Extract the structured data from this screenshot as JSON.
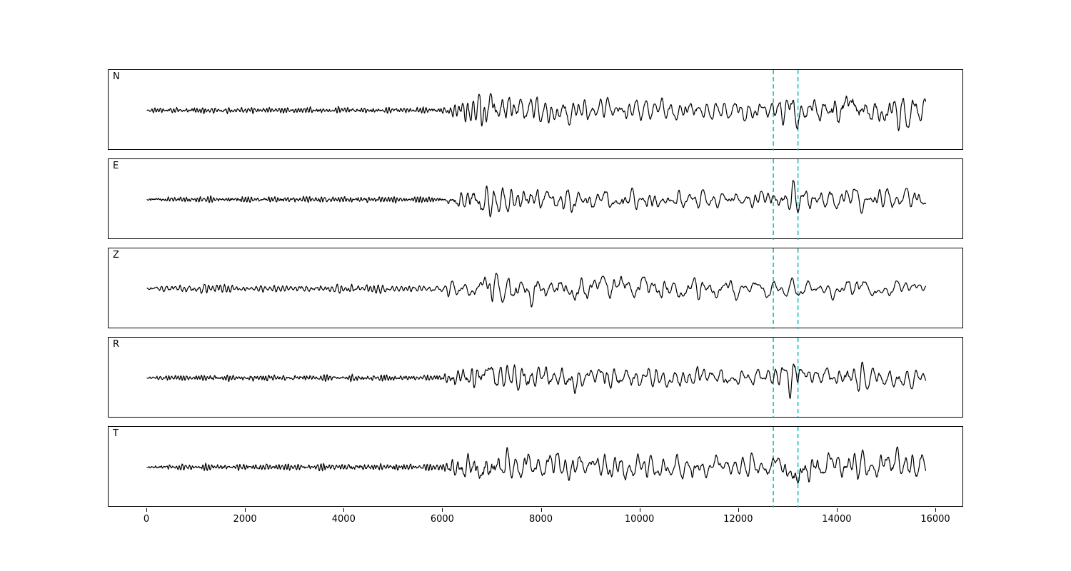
{
  "figure": {
    "background": "#ffffff",
    "trace_color": "#000000",
    "marker_color": "#00bfbf"
  },
  "chart_data": {
    "type": "line",
    "subtype": "seismogram-multipanel",
    "title": "",
    "xlabel": "",
    "ylabel": "",
    "xlim": [
      -790,
      16600
    ],
    "xticks": [
      0,
      2000,
      4000,
      6000,
      8000,
      10000,
      12000,
      14000,
      16000
    ],
    "trace_x_range": [
      0,
      15800
    ],
    "grid": false,
    "legend": "none",
    "marker_lines": {
      "style": "dashed",
      "color": "#00bfbf",
      "positions": [
        12700,
        13200
      ]
    },
    "channels": [
      {
        "label": "N",
        "seed": 101,
        "env": [
          [
            0,
            2
          ],
          [
            1000,
            2.2
          ],
          [
            3000,
            2
          ],
          [
            5800,
            2.2
          ],
          [
            6050,
            4
          ],
          [
            6300,
            7
          ],
          [
            6850,
            13
          ],
          [
            7200,
            10
          ],
          [
            7800,
            10
          ],
          [
            8600,
            9
          ],
          [
            9500,
            8
          ],
          [
            10500,
            8
          ],
          [
            11500,
            7
          ],
          [
            12400,
            7
          ],
          [
            12800,
            8
          ],
          [
            13080,
            15
          ],
          [
            13300,
            9
          ],
          [
            13700,
            7
          ],
          [
            14100,
            12
          ],
          [
            14500,
            9
          ],
          [
            15000,
            11
          ],
          [
            15350,
            15
          ],
          [
            15600,
            10
          ],
          [
            15800,
            7
          ]
        ],
        "freq": [
          [
            0,
            1.05
          ],
          [
            5900,
            1.05
          ],
          [
            6200,
            0.6
          ],
          [
            7000,
            0.42
          ],
          [
            9000,
            0.38
          ],
          [
            16000,
            0.34
          ]
        ]
      },
      {
        "label": "E",
        "seed": 202,
        "env": [
          [
            0,
            2
          ],
          [
            2000,
            2.1
          ],
          [
            5800,
            2.2
          ],
          [
            6050,
            4
          ],
          [
            6300,
            7
          ],
          [
            6850,
            12
          ],
          [
            7300,
            9
          ],
          [
            8200,
            8
          ],
          [
            9500,
            7
          ],
          [
            10500,
            7
          ],
          [
            11500,
            6
          ],
          [
            12500,
            6
          ],
          [
            12900,
            7
          ],
          [
            13130,
            13
          ],
          [
            13350,
            8
          ],
          [
            13800,
            6
          ],
          [
            14250,
            11
          ],
          [
            14600,
            7
          ],
          [
            15000,
            8
          ],
          [
            15400,
            8
          ],
          [
            15800,
            6
          ]
        ],
        "freq": [
          [
            0,
            1.05
          ],
          [
            5900,
            1.05
          ],
          [
            6200,
            0.6
          ],
          [
            7000,
            0.42
          ],
          [
            9000,
            0.38
          ],
          [
            16000,
            0.34
          ]
        ]
      },
      {
        "label": "Z",
        "seed": 303,
        "env": [
          [
            0,
            2.3
          ],
          [
            1500,
            3.5
          ],
          [
            1800,
            2.3
          ],
          [
            3500,
            2.5
          ],
          [
            4600,
            3.5
          ],
          [
            5000,
            2.4
          ],
          [
            5900,
            2.5
          ],
          [
            6150,
            6
          ],
          [
            6500,
            5
          ],
          [
            6900,
            15
          ],
          [
            7150,
            9
          ],
          [
            7500,
            11
          ],
          [
            8000,
            9
          ],
          [
            9000,
            9
          ],
          [
            10000,
            9
          ],
          [
            11000,
            8
          ],
          [
            12000,
            7
          ],
          [
            13000,
            7
          ],
          [
            13500,
            6
          ],
          [
            14200,
            7
          ],
          [
            15000,
            6
          ],
          [
            15800,
            4
          ]
        ],
        "freq": [
          [
            0,
            0.7
          ],
          [
            5900,
            0.7
          ],
          [
            6200,
            0.42
          ],
          [
            7000,
            0.3
          ],
          [
            9000,
            0.27
          ],
          [
            16000,
            0.25
          ]
        ]
      },
      {
        "label": "R",
        "seed": 404,
        "env": [
          [
            0,
            2
          ],
          [
            3000,
            2.1
          ],
          [
            5800,
            2.2
          ],
          [
            6100,
            4
          ],
          [
            6400,
            6
          ],
          [
            6900,
            12
          ],
          [
            7300,
            9
          ],
          [
            8100,
            9
          ],
          [
            9000,
            8
          ],
          [
            10000,
            7
          ],
          [
            11000,
            7
          ],
          [
            12000,
            6
          ],
          [
            12700,
            6
          ],
          [
            13100,
            15
          ],
          [
            13350,
            8
          ],
          [
            13900,
            6
          ],
          [
            14300,
            12
          ],
          [
            14700,
            8
          ],
          [
            15200,
            9
          ],
          [
            15500,
            8
          ],
          [
            15800,
            6
          ]
        ],
        "freq": [
          [
            0,
            1.05
          ],
          [
            5900,
            1.05
          ],
          [
            6200,
            0.6
          ],
          [
            7000,
            0.42
          ],
          [
            9000,
            0.38
          ],
          [
            16000,
            0.34
          ]
        ]
      },
      {
        "label": "T",
        "seed": 505,
        "env": [
          [
            0,
            2.2
          ],
          [
            2500,
            2.3
          ],
          [
            5800,
            2.4
          ],
          [
            6100,
            5
          ],
          [
            6400,
            8
          ],
          [
            6900,
            12
          ],
          [
            7400,
            10
          ],
          [
            8300,
            10
          ],
          [
            9300,
            9
          ],
          [
            10300,
            9
          ],
          [
            11300,
            8
          ],
          [
            12300,
            8
          ],
          [
            12800,
            9
          ],
          [
            13150,
            14
          ],
          [
            13400,
            10
          ],
          [
            13900,
            9
          ],
          [
            14300,
            12
          ],
          [
            14700,
            10
          ],
          [
            15100,
            10
          ],
          [
            15400,
            14
          ],
          [
            15650,
            11
          ],
          [
            15800,
            8
          ]
        ],
        "freq": [
          [
            0,
            1.05
          ],
          [
            5900,
            1.05
          ],
          [
            6200,
            0.6
          ],
          [
            7000,
            0.42
          ],
          [
            9000,
            0.38
          ],
          [
            16000,
            0.34
          ]
        ]
      }
    ]
  }
}
